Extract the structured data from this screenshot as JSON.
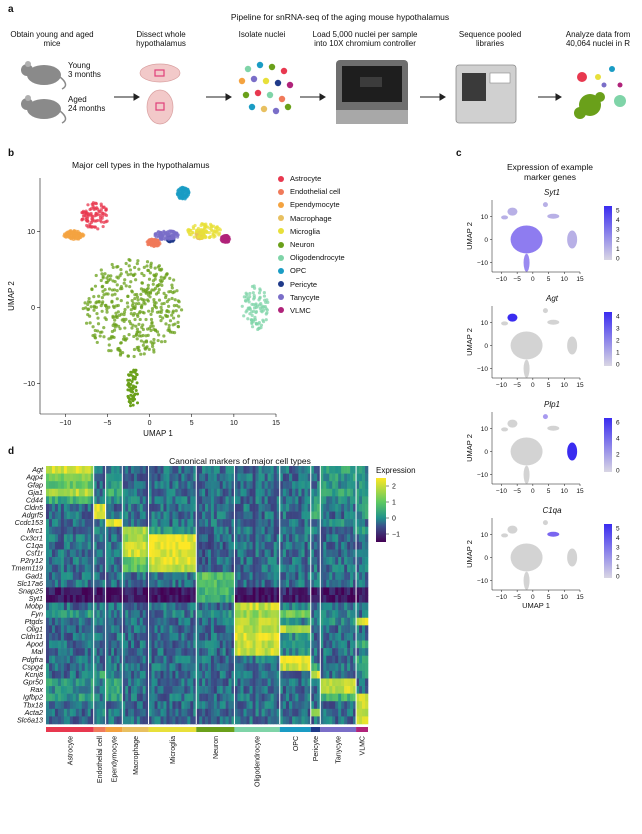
{
  "panel_a": {
    "letter": "a",
    "title": "Pipeline for snRNA-seq of the aging mouse hypothalamus",
    "steps": [
      "Obtain young and aged mice",
      "Dissect whole hypothalamus",
      "Isolate nuclei",
      "Load 5,000 nuclei per sample into 10X chromium controller",
      "Sequence pooled libraries",
      "Analyze data from 40,064 nuclei in R"
    ],
    "mouse_young": {
      "label": "Young",
      "age": "3 months"
    },
    "mouse_aged": {
      "label": "Aged",
      "age": "24 months"
    },
    "colors": {
      "mouse": "#8a8a8a",
      "brain": "#f2c9c9",
      "highlight": "#e0407a"
    }
  },
  "panel_b": {
    "letter": "b",
    "title": "Major cell types in the hypothalamus",
    "legend": [
      {
        "name": "Astrocyte",
        "color": "#e8384f"
      },
      {
        "name": "Endothelial cell",
        "color": "#f07a5a"
      },
      {
        "name": "Ependymocyte",
        "color": "#f4a340"
      },
      {
        "name": "Macrophage",
        "color": "#e8c060"
      },
      {
        "name": "Microglia",
        "color": "#e8e03a"
      },
      {
        "name": "Neuron",
        "color": "#6aa01a"
      },
      {
        "name": "Oligodendrocyte",
        "color": "#7fd4a8"
      },
      {
        "name": "OPC",
        "color": "#1a9cc4"
      },
      {
        "name": "Pericyte",
        "color": "#1f3a8a"
      },
      {
        "name": "Tanycyte",
        "color": "#7a6ec8"
      },
      {
        "name": "VLMC",
        "color": "#b0237a"
      }
    ]
  },
  "panel_c": {
    "letter": "c",
    "title_line1": "Expression of example",
    "title_line2": "marker genes",
    "genes": [
      "Syt1",
      "Agt",
      "Plp1",
      "C1qa"
    ],
    "colorbars": [
      [
        "5",
        "4",
        "3",
        "2",
        "1",
        "0"
      ],
      [
        "4",
        "3",
        "2",
        "1",
        "0"
      ],
      [
        "6",
        "4",
        "2",
        "0"
      ],
      [
        "5",
        "4",
        "3",
        "2",
        "1",
        "0"
      ]
    ],
    "colors": {
      "low": "#d9d6e4",
      "high": "#3a2cf0",
      "base": "#d3d3d3"
    }
  },
  "panel_d": {
    "letter": "d",
    "title": "Canonical markers of major cell types",
    "legend_title": "Expression",
    "legend_ticks": [
      "2",
      "1",
      "0",
      "−1"
    ],
    "genes": [
      "Agt",
      "Aqp4",
      "Gfap",
      "Gja1",
      "Cd44",
      "Cldn5",
      "Adgrf5",
      "Ccdc153",
      "Mrc1",
      "Cx3cr1",
      "C1qa",
      "Csf1r",
      "P2ry12",
      "Tmem119",
      "Gad1",
      "Slc17a6",
      "Snap25",
      "Syt1",
      "Mobp",
      "Fyn",
      "Ptgds",
      "Olig1",
      "Cldn11",
      "Apod",
      "Mal",
      "Pdgfra",
      "Cspg4",
      "Kcnj8",
      "Gpr50",
      "Rax",
      "Igfbp2",
      "Tbx18",
      "Acta2",
      "Slc6a13"
    ],
    "cell_types": [
      "Astrocyte",
      "Endothelial cell",
      "Ependymocyte",
      "Macrophage",
      "Microglia",
      "Neuron",
      "Oligodendrocyte",
      "OPC",
      "Pericyte",
      "Tanycyte",
      "VLMC"
    ]
  },
  "chart_data": [
    {
      "type": "scatter",
      "title": "Major cell types in the hypothalamus",
      "xlabel": "UMAP 1",
      "ylabel": "UMAP 2",
      "xlim": [
        -13,
        15
      ],
      "ylim": [
        -14,
        17
      ],
      "xticks": [
        "−10",
        "−5",
        "0",
        "5",
        "10",
        "15"
      ],
      "yticks": [
        "10",
        "0",
        "−10"
      ],
      "clusters": [
        {
          "name": "Astrocyte",
          "x": -6.5,
          "y": 12
        },
        {
          "name": "Endothelial cell",
          "x": 0.5,
          "y": 8.5
        },
        {
          "name": "Ependymocyte",
          "x": -9,
          "y": 9.5
        },
        {
          "name": "Macrophage",
          "x": 6,
          "y": 9.5
        },
        {
          "name": "Microglia",
          "x": 6.5,
          "y": 10
        },
        {
          "name": "Neuron",
          "x": -2,
          "y": 0
        },
        {
          "name": "Oligodendrocyte",
          "x": 12.5,
          "y": 0
        },
        {
          "name": "OPC",
          "x": 4,
          "y": 15
        },
        {
          "name": "Pericyte",
          "x": 2.5,
          "y": 9
        },
        {
          "name": "Tanycyte",
          "x": 2,
          "y": 9.5
        },
        {
          "name": "VLMC",
          "x": 9,
          "y": 9
        }
      ]
    },
    {
      "type": "heatmap",
      "title": "Canonical markers of major cell types",
      "legend_title": "Expression",
      "scale": [
        -1.5,
        2.5
      ],
      "rows": [
        "Agt",
        "Aqp4",
        "Gfap",
        "Gja1",
        "Cd44",
        "Cldn5",
        "Adgrf5",
        "Ccdc153",
        "Mrc1",
        "Cx3cr1",
        "C1qa",
        "Csf1r",
        "P2ry12",
        "Tmem119",
        "Gad1",
        "Slc17a6",
        "Snap25",
        "Syt1",
        "Mobp",
        "Fyn",
        "Ptgds",
        "Olig1",
        "Cldn11",
        "Apod",
        "Mal",
        "Pdgfra",
        "Cspg4",
        "Kcnj8",
        "Gpr50",
        "Rax",
        "Igfbp2",
        "Tbx18",
        "Acta2",
        "Slc6a13"
      ],
      "columns": [
        "Astrocyte",
        "Endothelial cell",
        "Ependymocyte",
        "Macrophage",
        "Microglia",
        "Neuron",
        "Oligodendrocyte",
        "OPC",
        "Pericyte",
        "Tanycyte",
        "VLMC"
      ],
      "values": [
        [
          2.0,
          -0.3,
          -0.2,
          -0.3,
          -0.3,
          -0.3,
          -0.3,
          -0.3,
          -0.2,
          0.3,
          0.0
        ],
        [
          1.2,
          -0.3,
          0.4,
          -0.3,
          -0.3,
          -0.3,
          -0.3,
          -0.3,
          -0.2,
          0.2,
          0.0
        ],
        [
          1.0,
          -0.3,
          0.3,
          -0.3,
          -0.3,
          -0.3,
          -0.3,
          -0.3,
          -0.2,
          0.1,
          0.0
        ],
        [
          1.8,
          -0.3,
          0.5,
          -0.3,
          -0.3,
          -0.3,
          -0.3,
          -0.3,
          -0.2,
          0.3,
          0.0
        ],
        [
          0.5,
          -0.2,
          0.0,
          -0.2,
          -0.2,
          -0.3,
          -0.3,
          -0.3,
          0.0,
          0.0,
          0.2
        ],
        [
          -0.3,
          2.2,
          -0.3,
          -0.2,
          -0.3,
          -0.3,
          -0.3,
          -0.3,
          0.5,
          -0.3,
          0.2
        ],
        [
          -0.3,
          2.0,
          -0.3,
          -0.2,
          -0.3,
          -0.3,
          -0.3,
          -0.3,
          0.4,
          -0.3,
          0.1
        ],
        [
          -0.3,
          -0.3,
          2.2,
          -0.3,
          -0.3,
          -0.3,
          -0.3,
          -0.3,
          -0.3,
          0.2,
          -0.3
        ],
        [
          -0.3,
          -0.2,
          -0.3,
          1.8,
          0.2,
          -0.3,
          -0.3,
          -0.3,
          -0.2,
          -0.3,
          0.3
        ],
        [
          -0.3,
          -0.3,
          -0.3,
          1.6,
          2.3,
          -0.4,
          -0.3,
          -0.3,
          -0.3,
          -0.3,
          -0.3
        ],
        [
          -0.3,
          -0.3,
          -0.3,
          2.0,
          2.4,
          -0.4,
          -0.3,
          -0.3,
          -0.3,
          -0.3,
          -0.3
        ],
        [
          -0.3,
          -0.3,
          -0.3,
          2.0,
          2.2,
          -0.4,
          -0.3,
          -0.3,
          -0.3,
          -0.3,
          -0.3
        ],
        [
          -0.3,
          -0.3,
          -0.3,
          1.0,
          2.2,
          -0.4,
          -0.3,
          -0.3,
          -0.3,
          -0.3,
          -0.3
        ],
        [
          -0.3,
          -0.3,
          -0.3,
          0.8,
          1.8,
          -0.4,
          -0.3,
          -0.3,
          -0.3,
          -0.3,
          -0.3
        ],
        [
          -0.3,
          -0.3,
          -0.3,
          -0.3,
          -0.3,
          0.9,
          -0.3,
          -0.3,
          -0.3,
          -0.3,
          -0.3
        ],
        [
          -0.3,
          -0.3,
          -0.3,
          -0.3,
          -0.3,
          0.8,
          -0.3,
          -0.3,
          -0.3,
          -0.3,
          -0.3
        ],
        [
          -1.2,
          -1.2,
          -1.2,
          -1.2,
          -1.2,
          0.6,
          -1.2,
          -1.0,
          -1.2,
          -1.2,
          -1.2
        ],
        [
          -1.3,
          -1.3,
          -1.3,
          -1.3,
          -1.3,
          0.5,
          -1.3,
          -1.1,
          -1.3,
          -1.3,
          -1.3
        ],
        [
          -0.3,
          -0.3,
          -0.3,
          -0.3,
          -0.3,
          -0.3,
          2.0,
          0.0,
          -0.3,
          -0.3,
          -0.3
        ],
        [
          0.2,
          -0.2,
          -0.2,
          -0.3,
          -0.2,
          0.1,
          1.5,
          1.2,
          -0.2,
          0.0,
          -0.2
        ],
        [
          -0.3,
          -0.3,
          -0.3,
          -0.3,
          -0.3,
          -0.3,
          1.8,
          0.0,
          0.0,
          0.0,
          2.0
        ],
        [
          -0.3,
          -0.3,
          -0.3,
          -0.3,
          -0.3,
          -0.3,
          1.8,
          1.8,
          -0.3,
          -0.3,
          -0.3
        ],
        [
          -0.3,
          -0.3,
          -0.3,
          -0.3,
          -0.3,
          -0.3,
          2.2,
          0.1,
          -0.3,
          -0.3,
          -0.3
        ],
        [
          -0.3,
          -0.3,
          -0.3,
          -0.3,
          -0.3,
          -0.3,
          2.0,
          0.0,
          -0.3,
          -0.3,
          0.5
        ],
        [
          -0.3,
          -0.3,
          -0.3,
          -0.3,
          -0.3,
          -0.3,
          2.0,
          0.0,
          -0.3,
          -0.3,
          -0.3
        ],
        [
          -0.3,
          -0.3,
          -0.3,
          -0.3,
          -0.3,
          -0.3,
          -0.2,
          2.4,
          -0.3,
          -0.3,
          0.3
        ],
        [
          -0.3,
          -0.3,
          -0.3,
          -0.3,
          -0.3,
          -0.3,
          -0.2,
          2.0,
          0.5,
          -0.3,
          0.1
        ],
        [
          -0.3,
          0.3,
          -0.3,
          -0.3,
          -0.3,
          -0.3,
          -0.3,
          -0.3,
          2.0,
          -0.3,
          0.0
        ],
        [
          0.2,
          -0.3,
          0.3,
          -0.3,
          -0.3,
          -0.3,
          -0.3,
          -0.3,
          -0.3,
          2.0,
          -0.3
        ],
        [
          0.0,
          -0.3,
          0.3,
          -0.3,
          -0.3,
          -0.3,
          -0.3,
          -0.3,
          -0.3,
          2.0,
          -0.3
        ],
        [
          0.2,
          -0.3,
          0.2,
          -0.3,
          -0.3,
          -0.3,
          -0.3,
          -0.3,
          -0.3,
          0.6,
          2.0
        ],
        [
          -0.3,
          -0.3,
          -0.3,
          -0.3,
          -0.3,
          -0.3,
          -0.3,
          -0.3,
          -0.2,
          -0.3,
          2.0
        ],
        [
          -0.3,
          0.2,
          -0.3,
          -0.3,
          -0.3,
          -0.3,
          -0.3,
          -0.3,
          1.5,
          -0.3,
          1.5
        ],
        [
          -0.3,
          -0.3,
          -0.3,
          -0.3,
          -0.3,
          -0.3,
          -0.3,
          -0.3,
          -0.3,
          -0.3,
          2.0
        ]
      ]
    }
  ]
}
